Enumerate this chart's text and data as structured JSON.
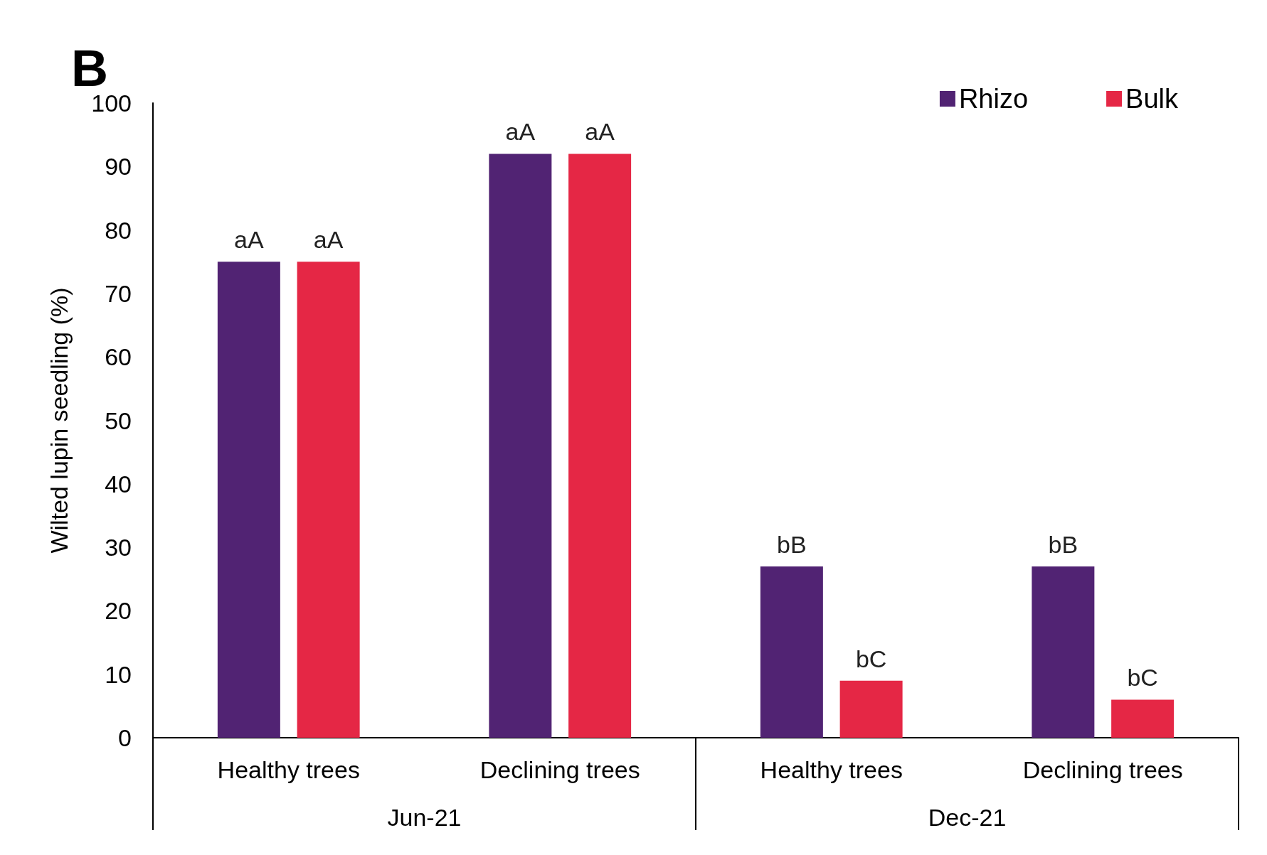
{
  "chart_data": {
    "type": "bar",
    "title": "B",
    "ylabel": "Wilted lupin seedling (%)",
    "categories": [
      "Healthy trees",
      "Declining trees",
      "Healthy trees",
      "Declining trees"
    ],
    "series": [
      {
        "name": "Rhizo",
        "color": "#512373",
        "values": [
          75,
          92,
          27,
          27
        ],
        "value_labels": [
          "aA",
          "aA",
          "bB",
          "bB"
        ]
      },
      {
        "name": "Bulk",
        "color": "#e52745",
        "values": [
          75,
          92,
          9,
          6
        ],
        "value_labels": [
          "aA",
          "aA",
          "bC",
          "bC"
        ]
      }
    ],
    "annotations": [
      "Jun-21",
      "Dec-21"
    ],
    "ylim": [
      0,
      100
    ],
    "yticks": [
      0,
      10,
      20,
      30,
      40,
      50,
      60,
      70,
      80,
      90,
      100
    ],
    "grid": false,
    "legend": "top right"
  }
}
